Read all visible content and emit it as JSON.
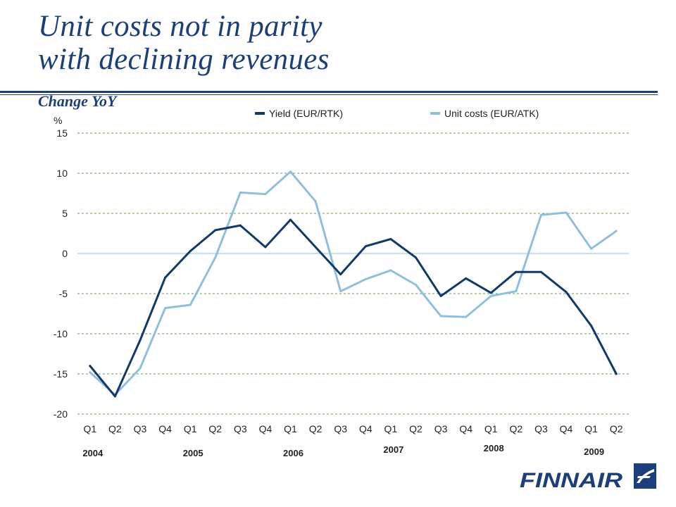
{
  "page": {
    "title_line1": "Unit costs not in parity",
    "title_line2": "with declining revenues",
    "subtitle": "Change YoY",
    "accent_color": "#1b3f7a"
  },
  "logo": {
    "text": "FINNAIR",
    "icon": "finnair-f-logo-icon",
    "color": "#1b3f7a"
  },
  "chart_data": {
    "type": "line",
    "ylabel": "%",
    "ylim": [
      -20,
      15
    ],
    "yticks": [
      15,
      10,
      5,
      0,
      -5,
      -10,
      -15,
      -20
    ],
    "grid": true,
    "legend_position": "top",
    "categories": [
      "Q1",
      "Q2",
      "Q3",
      "Q4",
      "Q1",
      "Q2",
      "Q3",
      "Q4",
      "Q1",
      "Q2",
      "Q3",
      "Q4",
      "Q1",
      "Q2",
      "Q3",
      "Q4",
      "Q1",
      "Q2",
      "Q3",
      "Q4",
      "Q1",
      "Q2"
    ],
    "year_labels": [
      {
        "label": "2004",
        "index": 0
      },
      {
        "label": "2005",
        "index": 4
      },
      {
        "label": "2006",
        "index": 8
      },
      {
        "label": "2007",
        "index": 12
      },
      {
        "label": "2008",
        "index": 16
      },
      {
        "label": "2009",
        "index": 20
      }
    ],
    "series": [
      {
        "name": "Yield (EUR/RTK)",
        "color": "#0f3a6a",
        "values": [
          -14.0,
          -17.8,
          -10.8,
          -3.0,
          0.3,
          2.9,
          3.5,
          0.8,
          4.2,
          0.8,
          -2.6,
          0.9,
          1.8,
          -0.5,
          -5.3,
          -3.1,
          -4.9,
          -2.3,
          -2.3,
          -4.8,
          -9.0,
          -15.0
        ]
      },
      {
        "name": "Unit costs (EUR/ATK)",
        "color": "#8fbfdf",
        "values": [
          -14.8,
          -17.6,
          -14.3,
          -6.8,
          -6.4,
          -0.5,
          7.6,
          7.4,
          10.2,
          6.5,
          -4.7,
          -3.2,
          -2.1,
          -3.9,
          -7.8,
          -7.9,
          -5.3,
          -4.7,
          4.8,
          5.1,
          0.6,
          2.8
        ]
      }
    ]
  }
}
